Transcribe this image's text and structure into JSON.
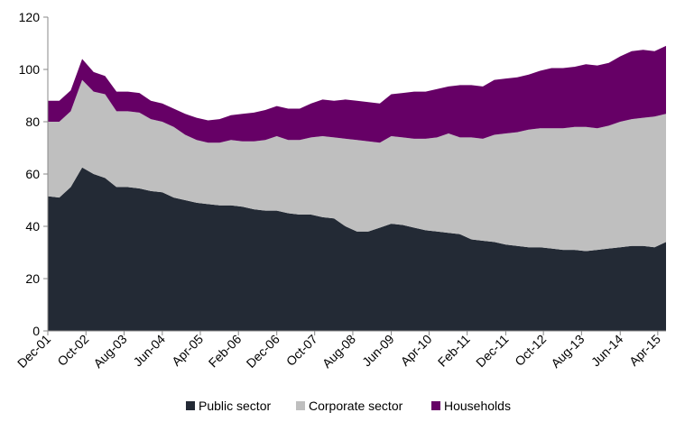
{
  "chart_data": {
    "type": "area",
    "stacked": true,
    "title": "",
    "xlabel": "",
    "ylabel": "",
    "ylim": [
      0,
      120
    ],
    "yticks": [
      0,
      20,
      40,
      60,
      80,
      100,
      120
    ],
    "grid": false,
    "legend_position": "bottom",
    "x_start": "Dec-01",
    "x_end": "Jun-15",
    "x_tick_labels": [
      "Dec-01",
      "Oct-02",
      "Aug-03",
      "Jun-04",
      "Apr-05",
      "Feb-06",
      "Dec-06",
      "Oct-07",
      "Aug-08",
      "Jun-09",
      "Apr-10",
      "Feb-11",
      "Dec-11",
      "Oct-12",
      "Aug-13",
      "Jun-14",
      "Apr-15"
    ],
    "quarters": [
      "Dec-01",
      "Mar-02",
      "Jun-02",
      "Sep-02",
      "Dec-02",
      "Mar-03",
      "Jun-03",
      "Sep-03",
      "Dec-03",
      "Mar-04",
      "Jun-04",
      "Sep-04",
      "Dec-04",
      "Mar-05",
      "Jun-05",
      "Sep-05",
      "Dec-05",
      "Mar-06",
      "Jun-06",
      "Sep-06",
      "Dec-06",
      "Mar-07",
      "Jun-07",
      "Sep-07",
      "Dec-07",
      "Mar-08",
      "Jun-08",
      "Sep-08",
      "Dec-08",
      "Mar-09",
      "Jun-09",
      "Sep-09",
      "Dec-09",
      "Mar-10",
      "Jun-10",
      "Sep-10",
      "Dec-10",
      "Mar-11",
      "Jun-11",
      "Sep-11",
      "Dec-11",
      "Mar-12",
      "Jun-12",
      "Sep-12",
      "Dec-12",
      "Mar-13",
      "Jun-13",
      "Sep-13",
      "Dec-13",
      "Mar-14",
      "Jun-14",
      "Sep-14",
      "Dec-14",
      "Mar-15",
      "Jun-15"
    ],
    "series": [
      {
        "name": "Public sector",
        "color": "#232a35",
        "values": [
          51.5,
          51,
          55,
          62.5,
          60,
          58.5,
          55,
          55,
          54.5,
          53.5,
          53,
          51,
          50,
          49,
          48.5,
          48,
          48,
          47.5,
          46.5,
          46,
          46,
          45,
          44.5,
          44.5,
          43.5,
          43,
          40,
          38,
          38,
          39.5,
          41,
          40.5,
          39.5,
          38.5,
          38,
          37.5,
          37,
          35,
          34.5,
          34,
          33,
          32.5,
          32,
          32,
          31.5,
          31,
          31,
          30.5,
          31,
          31.5,
          32,
          32.5,
          32.5,
          32,
          34
        ]
      },
      {
        "name": "Corporate sector",
        "color": "#bfbfbf",
        "values": [
          28.5,
          29,
          29,
          33.5,
          31.5,
          32,
          29,
          29,
          29,
          27.5,
          27,
          27,
          25,
          24,
          23.5,
          24,
          25,
          25,
          26,
          27,
          28.5,
          28,
          28.5,
          29.5,
          31,
          31,
          33.5,
          35,
          34.5,
          32.5,
          33.5,
          33.5,
          34,
          35,
          36,
          38,
          37,
          39,
          39,
          41,
          42.5,
          43.5,
          45,
          45.5,
          46,
          46.5,
          47,
          47.5,
          46.5,
          47,
          48,
          48.5,
          49,
          50,
          49
        ]
      },
      {
        "name": "Households",
        "color": "#660066",
        "values": [
          8,
          8,
          8,
          8,
          7.5,
          7,
          7.5,
          7.5,
          7.5,
          7,
          7,
          7,
          8,
          8.5,
          8.5,
          9,
          9.5,
          10.5,
          11,
          11.5,
          11.5,
          12,
          12,
          13,
          14,
          14,
          15,
          15,
          15,
          15,
          16,
          17,
          18,
          18,
          18.5,
          18,
          20,
          20,
          20,
          21,
          21,
          21,
          21,
          22,
          23,
          23,
          23,
          24,
          24,
          24,
          25,
          26,
          26,
          25,
          26
        ]
      }
    ]
  }
}
